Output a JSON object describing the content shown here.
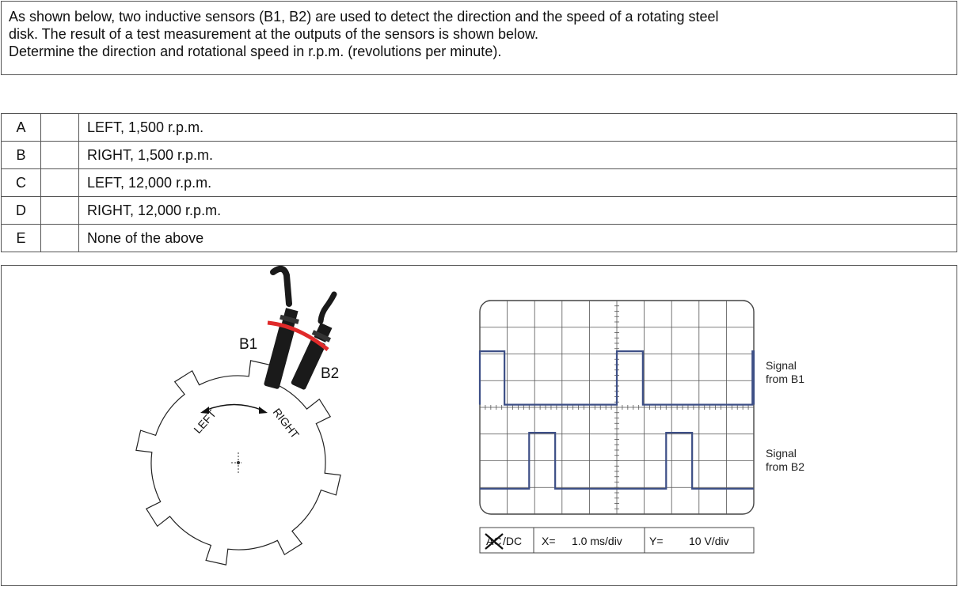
{
  "question": {
    "line1": "As shown below, two inductive sensors (B1, B2) are used to detect the direction and the speed of a rotating steel",
    "line2": "disk. The result of a test measurement at the outputs of the sensors is shown below.",
    "line3": "Determine the direction and rotational speed in r.p.m. (revolutions per minute)."
  },
  "options": [
    {
      "letter": "A",
      "text": "LEFT,  1,500 r.p.m."
    },
    {
      "letter": "B",
      "text": "RIGHT,  1,500 r.p.m."
    },
    {
      "letter": "C",
      "text": "LEFT,  12,000 r.p.m."
    },
    {
      "letter": "D",
      "text": "RIGHT,  12,000 r.p.m."
    },
    {
      "letter": "E",
      "text": "None of the above"
    }
  ],
  "disk": {
    "sensor1_label": "B1",
    "sensor2_label": "B2",
    "left_label": "LEFT",
    "right_label": "RIGHT",
    "tooth_count": 8
  },
  "scope": {
    "signal1_label_line1": "Signal",
    "signal1_label_line2": "from B1",
    "signal2_label_line1": "Signal",
    "signal2_label_line2": "from B2",
    "coupling_struck": "AC",
    "coupling_active": "/DC",
    "x_label": "X=",
    "x_value": "1.0  ms/div",
    "y_label": "Y=",
    "y_value": "10  V/div",
    "x_divisions": 10,
    "y_divisions": 8,
    "b1_high_intervals_div": [
      [
        0,
        0.9
      ],
      [
        5,
        5.95
      ],
      [
        9.95,
        10
      ]
    ],
    "b2_high_intervals_div": [
      [
        1.8,
        2.75
      ],
      [
        6.8,
        7.75
      ]
    ]
  },
  "colors": {
    "trace": "#3d4f86",
    "sensor_band": "#e02a2a",
    "sensor_body": "#1a1a1a",
    "grid": "#555555"
  }
}
